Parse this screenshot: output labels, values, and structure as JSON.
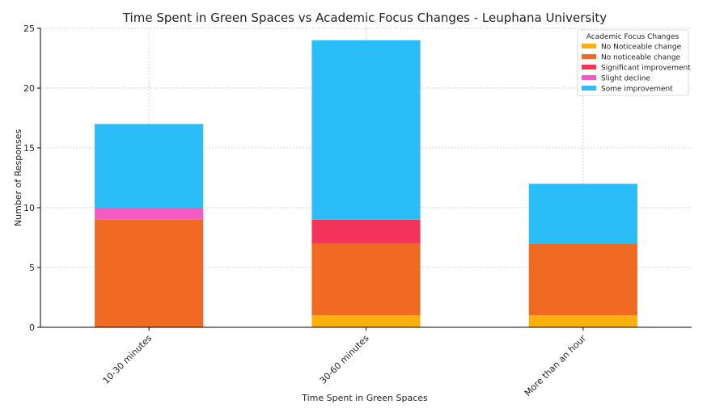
{
  "chart_data": {
    "type": "bar",
    "stacked": true,
    "title": "Time Spent in Green Spaces vs Academic Focus Changes - Leuphana University",
    "xlabel": "Time Spent in Green Spaces",
    "ylabel": "Number of Responses",
    "categories": [
      "10-30 minutes",
      "30-60 minutes",
      "More than an hour"
    ],
    "ylim": [
      0,
      25
    ],
    "yticks": [
      0,
      5,
      10,
      15,
      20,
      25
    ],
    "grid": true,
    "legend": {
      "title": "Academic Focus Changes",
      "position": "top-right"
    },
    "series": [
      {
        "name": "No Noticeable change",
        "color": "#FBB10A",
        "values": [
          0,
          1,
          1
        ]
      },
      {
        "name": "No noticeable change",
        "color": "#F06A23",
        "values": [
          9,
          6,
          6
        ]
      },
      {
        "name": "Significant improvement",
        "color": "#F4345A",
        "values": [
          0,
          2,
          0
        ]
      },
      {
        "name": "Slight decline",
        "color": "#F25BC1",
        "values": [
          1,
          0,
          0
        ]
      },
      {
        "name": "Some improvement",
        "color": "#2ABDF8",
        "values": [
          7,
          15,
          5
        ]
      }
    ]
  }
}
